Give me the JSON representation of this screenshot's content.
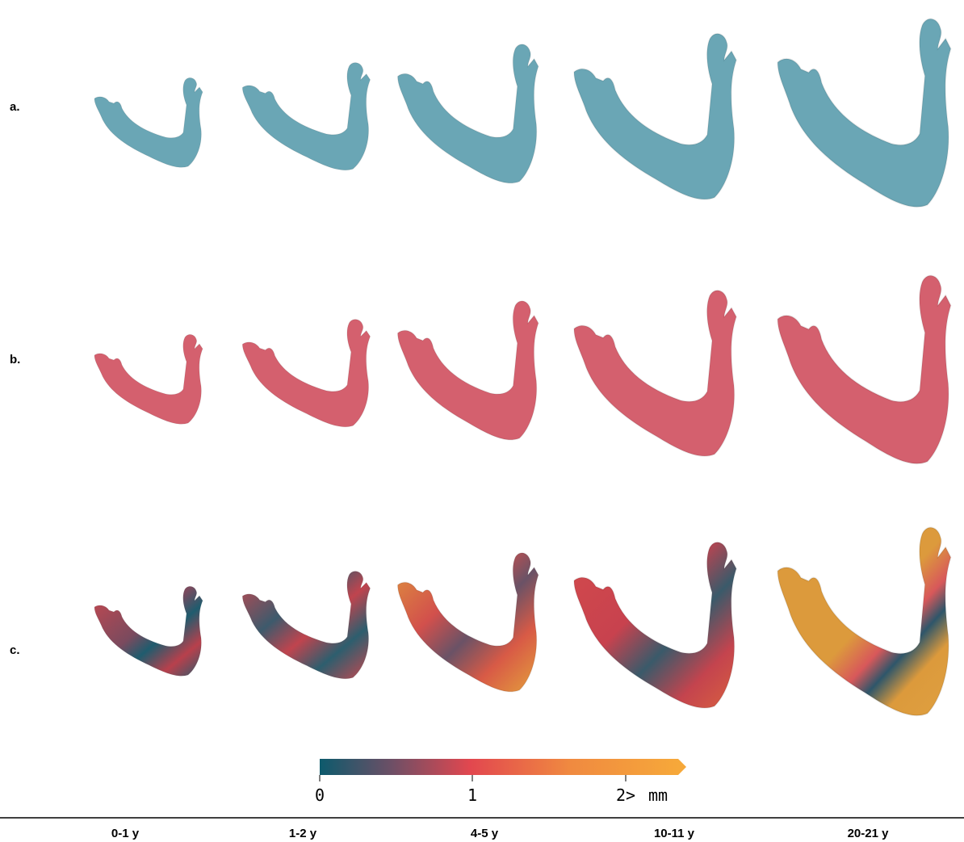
{
  "rows": [
    {
      "label": "a."
    },
    {
      "label": "b."
    },
    {
      "label": "c."
    }
  ],
  "columns": [
    "0-1 y",
    "1-2 y",
    "4-5 y",
    "10-11 y",
    "20-21 y"
  ],
  "colorbar": {
    "ticks": [
      "0",
      "1",
      "2>"
    ],
    "unit": "mm"
  }
}
